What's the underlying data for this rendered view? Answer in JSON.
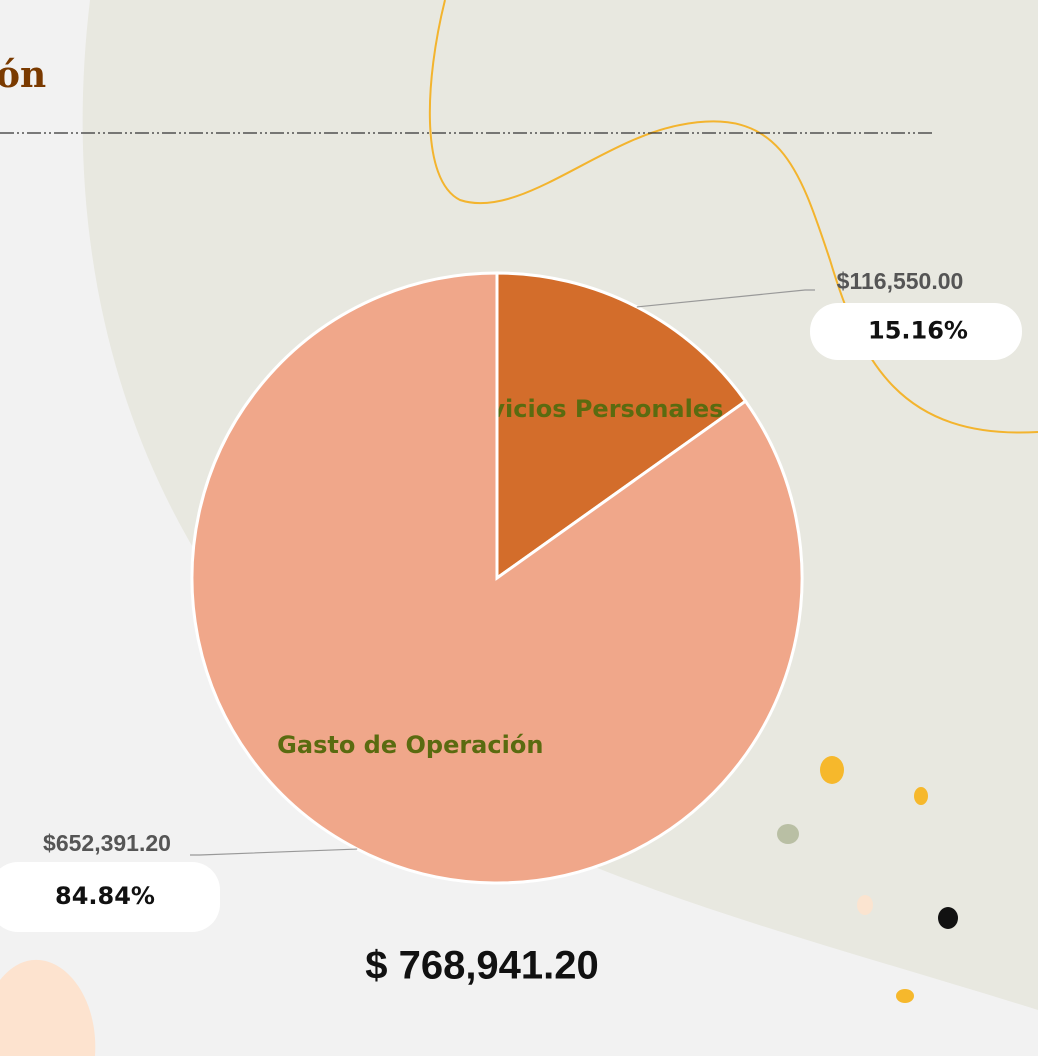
{
  "heading": "ón",
  "chart_data": {
    "type": "pie",
    "categories": [
      "Servicios Personales",
      "Gasto de Operación"
    ],
    "values": [
      15.16,
      84.84
    ],
    "value_labels": [
      "15.16%",
      "84.84%"
    ],
    "amount_labels": [
      "$116,550.00",
      "$652,391.20"
    ],
    "colors": [
      "#d36d2b",
      "#f0a78a"
    ],
    "total_label": "$  768,941.20"
  }
}
